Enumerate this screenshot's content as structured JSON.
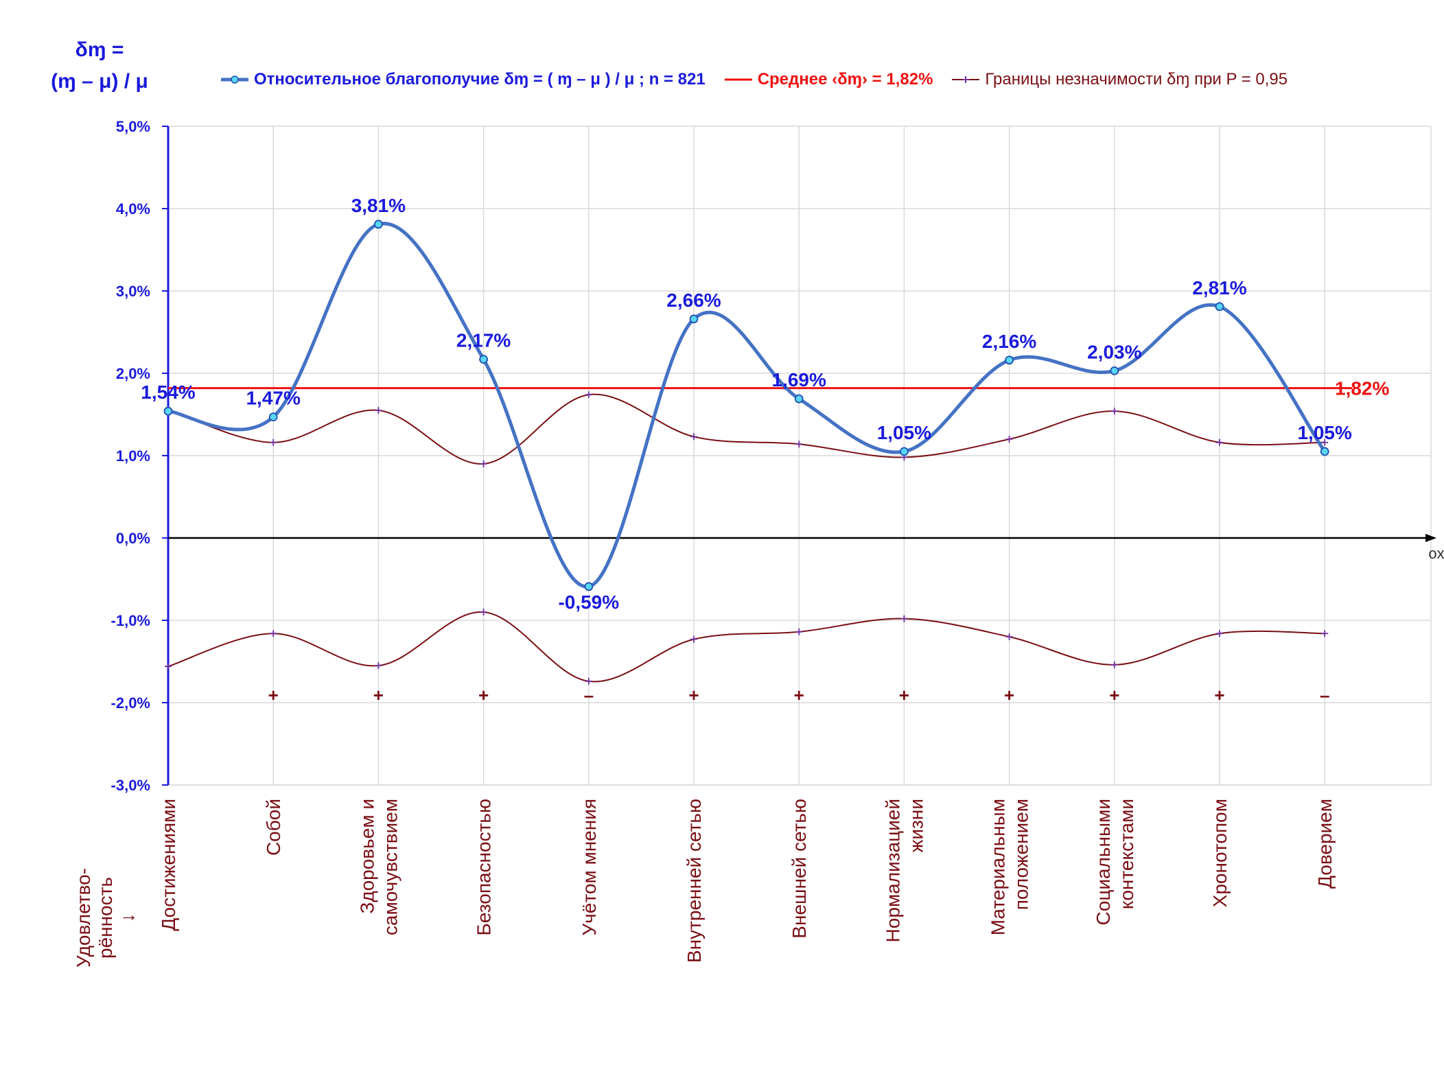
{
  "y_axis_label": {
    "line1": "δɱ =",
    "line2": "(ɱ – μ) / μ"
  },
  "legend": {
    "main": "Относительное благополучие δɱ = ( ɱ – μ ) / μ ; n = 821",
    "mean": "Среднее ‹δɱ› = 1,82%",
    "bounds": "Границы незначимости δɱ при P = 0,95"
  },
  "x_axis_title": {
    "line1": "Удовлетво-",
    "line2": "рённость",
    "line3": "↓"
  },
  "axis_end_label": "ox",
  "colors": {
    "main": "#4472c4",
    "main_label": "#1a1adc",
    "mean": "#ee1111",
    "bounds": "#7a0f14",
    "axis": "#1a1adc",
    "grid": "#d9d9d9"
  },
  "chart_data": {
    "type": "line",
    "categories": [
      "Достижениями",
      "Собой",
      "Здоровьем и\nсамочувствием",
      "Безопасностью",
      "Учётом мнения",
      "Внутренней сетью",
      "Внешней сетью",
      "Нормализацией\nжизни",
      "Материальным\nположением",
      "Социальными\nконтекстами",
      "Хронотопом",
      "Доверием"
    ],
    "ylim": [
      -0.03,
      0.05
    ],
    "yticks": [
      0.05,
      0.04,
      0.03,
      0.02,
      0.01,
      0.0,
      -0.01,
      -0.02,
      -0.03
    ],
    "ytick_labels": [
      "5,0%",
      "4,0%",
      "3,0%",
      "2,0%",
      "1,0%",
      "0,0%",
      "-1,0%",
      "-2,0%",
      "-3,0%"
    ],
    "series": [
      {
        "name": "Относительное благополучие δɱ = ( ɱ – μ ) / μ ; n = 821",
        "values": [
          0.0154,
          0.0147,
          0.0381,
          0.0217,
          -0.0059,
          0.0266,
          0.0169,
          0.0105,
          0.0216,
          0.0203,
          0.0281,
          0.0105
        ],
        "labels": [
          "1,54%",
          "1,47%",
          "3,81%",
          "2,17%",
          "-0,59%",
          "2,66%",
          "1,69%",
          "1,05%",
          "2,16%",
          "2,03%",
          "2,81%",
          "1,05%"
        ]
      },
      {
        "name": "Среднее ‹δɱ› = 1,82%",
        "value": 0.0182,
        "label": "1,82%"
      },
      {
        "name": "Границы незначимости δɱ при P = 0,95",
        "upper": [
          0.0156,
          0.0116,
          0.0155,
          0.009,
          0.0174,
          0.0123,
          0.0114,
          0.0098,
          0.012,
          0.0154,
          0.0116,
          0.0116
        ],
        "lower": [
          -0.0156,
          -0.0116,
          -0.0155,
          -0.009,
          -0.0174,
          -0.0123,
          -0.0114,
          -0.0098,
          -0.012,
          -0.0154,
          -0.0116,
          -0.0116
        ]
      }
    ],
    "significance_marks": [
      "",
      "+",
      "+",
      "+",
      "–",
      "+",
      "+",
      "+",
      "+",
      "+",
      "+",
      "–"
    ]
  }
}
